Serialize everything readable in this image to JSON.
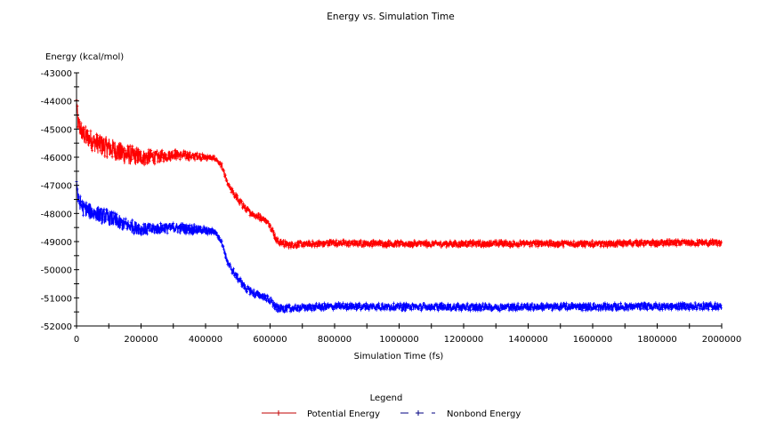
{
  "chart_data": {
    "type": "line",
    "title": "Energy vs. Simulation Time",
    "xlabel": "Simulation Time (fs)",
    "ylabel": "Energy (kcal/mol)",
    "xlim": [
      0,
      2000000
    ],
    "ylim": [
      -52000,
      -43000
    ],
    "x_ticks": [
      0,
      200000,
      400000,
      600000,
      800000,
      1000000,
      1200000,
      1400000,
      1600000,
      1800000,
      2000000
    ],
    "x_tick_labels": [
      "0",
      "200000",
      "400000",
      "600000",
      "800000",
      "1000000",
      "1200000",
      "1400000",
      "1600000",
      "1800000",
      "2000000"
    ],
    "x_minor_step": 100000,
    "y_ticks": [
      -43000,
      -44000,
      -45000,
      -46000,
      -47000,
      -48000,
      -49000,
      -50000,
      -51000,
      -52000
    ],
    "y_tick_labels": [
      "-43000",
      "-44000",
      "-45000",
      "-46000",
      "-47000",
      "-48000",
      "-49000",
      "-50000",
      "-51000",
      "-52000"
    ],
    "y_minor_step": 500,
    "grid": false,
    "legend": {
      "title": "Legend",
      "placement": "bottom-center",
      "entries": [
        {
          "label": "Potential Energy",
          "color": "#ff0000",
          "style": "solid-with-plus-markers"
        },
        {
          "label": "Nonbond Energy",
          "color": "#0000ff",
          "style": "dashed-with-plus-markers"
        }
      ]
    },
    "series": [
      {
        "name": "Potential Energy",
        "color": "#ff0000",
        "x": [
          0,
          5000,
          20000,
          60000,
          100000,
          150000,
          200000,
          250000,
          300000,
          350000,
          400000,
          430000,
          450000,
          470000,
          500000,
          530000,
          560000,
          580000,
          600000,
          620000,
          650000,
          700000,
          800000,
          1000000,
          1200000,
          1400000,
          1600000,
          1800000,
          2000000
        ],
        "y": [
          -44000,
          -44800,
          -45200,
          -45500,
          -45650,
          -45900,
          -46000,
          -46000,
          -45900,
          -45950,
          -46000,
          -46050,
          -46300,
          -47000,
          -47500,
          -47900,
          -48100,
          -48200,
          -48400,
          -48950,
          -49100,
          -49100,
          -49050,
          -49080,
          -49080,
          -49070,
          -49080,
          -49050,
          -49050
        ],
        "noise_band": [
          200,
          600,
          700,
          700,
          750,
          750,
          600,
          450,
          350,
          300,
          200,
          150,
          150,
          200,
          250,
          250,
          250,
          200,
          250,
          250,
          250,
          220,
          220,
          220,
          220,
          220,
          220,
          220,
          220
        ]
      },
      {
        "name": "Nonbond Energy",
        "color": "#0000ff",
        "x": [
          0,
          5000,
          20000,
          60000,
          100000,
          150000,
          200000,
          250000,
          300000,
          350000,
          400000,
          430000,
          450000,
          470000,
          500000,
          530000,
          560000,
          580000,
          600000,
          620000,
          650000,
          700000,
          800000,
          1000000,
          1200000,
          1400000,
          1600000,
          1800000,
          2000000
        ],
        "y": [
          -46800,
          -47500,
          -47800,
          -48000,
          -48150,
          -48400,
          -48550,
          -48550,
          -48500,
          -48550,
          -48600,
          -48650,
          -49000,
          -49800,
          -50300,
          -50700,
          -50900,
          -50950,
          -51100,
          -51350,
          -51400,
          -51350,
          -51300,
          -51320,
          -51330,
          -51320,
          -51320,
          -51300,
          -51300
        ],
        "noise_band": [
          300,
          500,
          550,
          550,
          550,
          500,
          450,
          400,
          350,
          350,
          300,
          200,
          200,
          250,
          250,
          250,
          250,
          250,
          250,
          280,
          280,
          250,
          250,
          250,
          250,
          250,
          250,
          250,
          250
        ]
      }
    ]
  }
}
